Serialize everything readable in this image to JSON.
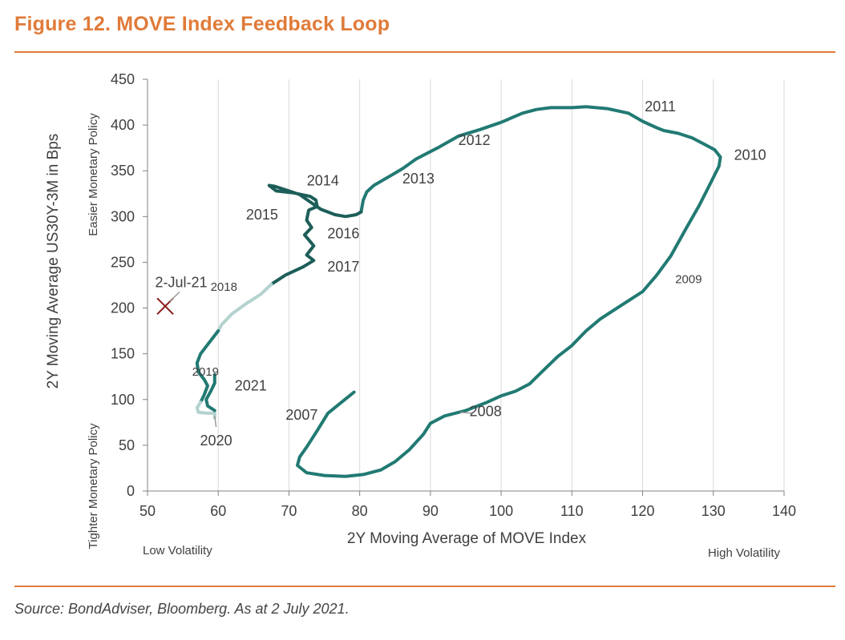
{
  "figure": {
    "title": "Figure 12. MOVE Index Feedback Loop",
    "source": "Source: BondAdviser, Bloomberg. As at 2 July 2021."
  },
  "colors": {
    "accent": "#e07b39",
    "line_main": "#217a73",
    "line_dark": "#1d5e59",
    "line_light": "#b4d2cf",
    "marker": "#8b1a1a",
    "grid": "#d9d9d9"
  },
  "chart_data": {
    "type": "line",
    "title": "",
    "xlabel": "2Y Moving Average of MOVE Index",
    "ylabel": "2Y Moving Average US30Y-3M in Bps",
    "xlim": [
      50,
      140
    ],
    "ylim": [
      0,
      450
    ],
    "xticks": [
      50,
      60,
      70,
      80,
      90,
      100,
      110,
      120,
      130,
      140
    ],
    "yticks": [
      0,
      50,
      100,
      150,
      200,
      250,
      300,
      350,
      400,
      450
    ],
    "grid": "vertical",
    "axis_notes": {
      "y_top": "Easier Monetary Policy",
      "y_bottom": "Tighter Monetary Policy",
      "x_left": "Low Volatility",
      "x_right": "High Volatility"
    },
    "series": [
      {
        "name": "2007-2013",
        "tone": "main",
        "points": [
          [
            79.2,
            108
          ],
          [
            75.5,
            85
          ],
          [
            74,
            66
          ],
          [
            72.5,
            48
          ],
          [
            71.5,
            37
          ],
          [
            71.2,
            28
          ],
          [
            72.5,
            20
          ],
          [
            75,
            17
          ],
          [
            78,
            16
          ],
          [
            80.5,
            18
          ],
          [
            83,
            23
          ],
          [
            85,
            32
          ],
          [
            87,
            45
          ],
          [
            89,
            62
          ],
          [
            90,
            74
          ],
          [
            92,
            82
          ],
          [
            95,
            88
          ],
          [
            98,
            97
          ],
          [
            100,
            104
          ],
          [
            102,
            109
          ],
          [
            104,
            117
          ],
          [
            106,
            132
          ],
          [
            108,
            147
          ],
          [
            110,
            159
          ],
          [
            112,
            175
          ],
          [
            114,
            188
          ],
          [
            116,
            198
          ],
          [
            118,
            208
          ],
          [
            120,
            218
          ],
          [
            122,
            236
          ],
          [
            124,
            257
          ],
          [
            126,
            285
          ],
          [
            128,
            312
          ],
          [
            129.5,
            335
          ],
          [
            130.8,
            355
          ],
          [
            131,
            365
          ],
          [
            130.2,
            373
          ],
          [
            128.5,
            380
          ],
          [
            127,
            386
          ],
          [
            125,
            391
          ],
          [
            123,
            394
          ],
          [
            122,
            397
          ],
          [
            120,
            404
          ],
          [
            118,
            413
          ],
          [
            115,
            418
          ],
          [
            112,
            420
          ],
          [
            110,
            419
          ],
          [
            107,
            419
          ],
          [
            105,
            417
          ],
          [
            103,
            413
          ],
          [
            100,
            403
          ],
          [
            97,
            395
          ],
          [
            94,
            388
          ],
          [
            91,
            375
          ],
          [
            88,
            363
          ],
          [
            86,
            352
          ],
          [
            84,
            343
          ],
          [
            82,
            334
          ],
          [
            81,
            327
          ],
          [
            80.5,
            318
          ],
          [
            80.2,
            305
          ]
        ]
      },
      {
        "name": "2014-2017",
        "tone": "dark",
        "points": [
          [
            80.2,
            305
          ],
          [
            79.5,
            302
          ],
          [
            78,
            300
          ],
          [
            76.5,
            302
          ],
          [
            74.5,
            308
          ],
          [
            73,
            316
          ],
          [
            71.5,
            324
          ],
          [
            70,
            328
          ],
          [
            68,
            333
          ],
          [
            67.2,
            334
          ],
          [
            68.2,
            328
          ],
          [
            70.5,
            326
          ],
          [
            73,
            322
          ],
          [
            73.8,
            318
          ],
          [
            74,
            311
          ],
          [
            72.8,
            307
          ],
          [
            72.5,
            296
          ],
          [
            73.2,
            288
          ],
          [
            72.2,
            280
          ],
          [
            73.5,
            268
          ],
          [
            72.5,
            258
          ],
          [
            73.5,
            252
          ],
          [
            72,
            245
          ],
          [
            69.5,
            236
          ],
          [
            67.5,
            226
          ]
        ]
      },
      {
        "name": "2018",
        "tone": "light",
        "points": [
          [
            67.5,
            226
          ],
          [
            66,
            215
          ],
          [
            64,
            205
          ],
          [
            62,
            194
          ],
          [
            60.5,
            182
          ],
          [
            60,
            175
          ]
        ]
      },
      {
        "name": "2019",
        "tone": "main",
        "points": [
          [
            60,
            175
          ],
          [
            58.5,
            160
          ],
          [
            57.5,
            150
          ],
          [
            57,
            140
          ],
          [
            57.2,
            130
          ],
          [
            58,
            122
          ],
          [
            58.5,
            115
          ],
          [
            58,
            105
          ],
          [
            57.5,
            97
          ]
        ]
      },
      {
        "name": "2020",
        "tone": "light",
        "points": [
          [
            57.5,
            97
          ],
          [
            57,
            91
          ],
          [
            57.2,
            86
          ],
          [
            58.5,
            85
          ],
          [
            59.5,
            85
          ],
          [
            59.5,
            80
          ]
        ]
      },
      {
        "name": "2021",
        "tone": "main",
        "points": [
          [
            59.5,
            88
          ],
          [
            58.5,
            93
          ],
          [
            58.3,
            100
          ],
          [
            59,
            110
          ],
          [
            59.5,
            118
          ],
          [
            59.5,
            127
          ]
        ]
      }
    ],
    "year_labels": [
      {
        "text": "2007",
        "x": 71.8,
        "y": 78
      },
      {
        "text": "2008",
        "x": 97.8,
        "y": 82
      },
      {
        "text": "2009",
        "x": 126.5,
        "y": 227
      },
      {
        "text": "2010",
        "x": 135.2,
        "y": 362
      },
      {
        "text": "2011",
        "x": 122.5,
        "y": 415
      },
      {
        "text": "2012",
        "x": 96.2,
        "y": 378
      },
      {
        "text": "2013",
        "x": 88.3,
        "y": 336
      },
      {
        "text": "2014",
        "x": 74.8,
        "y": 334
      },
      {
        "text": "2015",
        "x": 66.2,
        "y": 297
      },
      {
        "text": "2016",
        "x": 77.7,
        "y": 276
      },
      {
        "text": "2017",
        "x": 77.7,
        "y": 240
      },
      {
        "text": "2018",
        "x": 60.8,
        "y": 219
      },
      {
        "text": "2019",
        "x": 58.2,
        "y": 126
      },
      {
        "text": "2020",
        "x": 59.7,
        "y": 50
      },
      {
        "text": "2021",
        "x": 64.6,
        "y": 110
      }
    ],
    "marker": {
      "label": "2-Jul-21",
      "x": 52.5,
      "y": 202
    }
  }
}
